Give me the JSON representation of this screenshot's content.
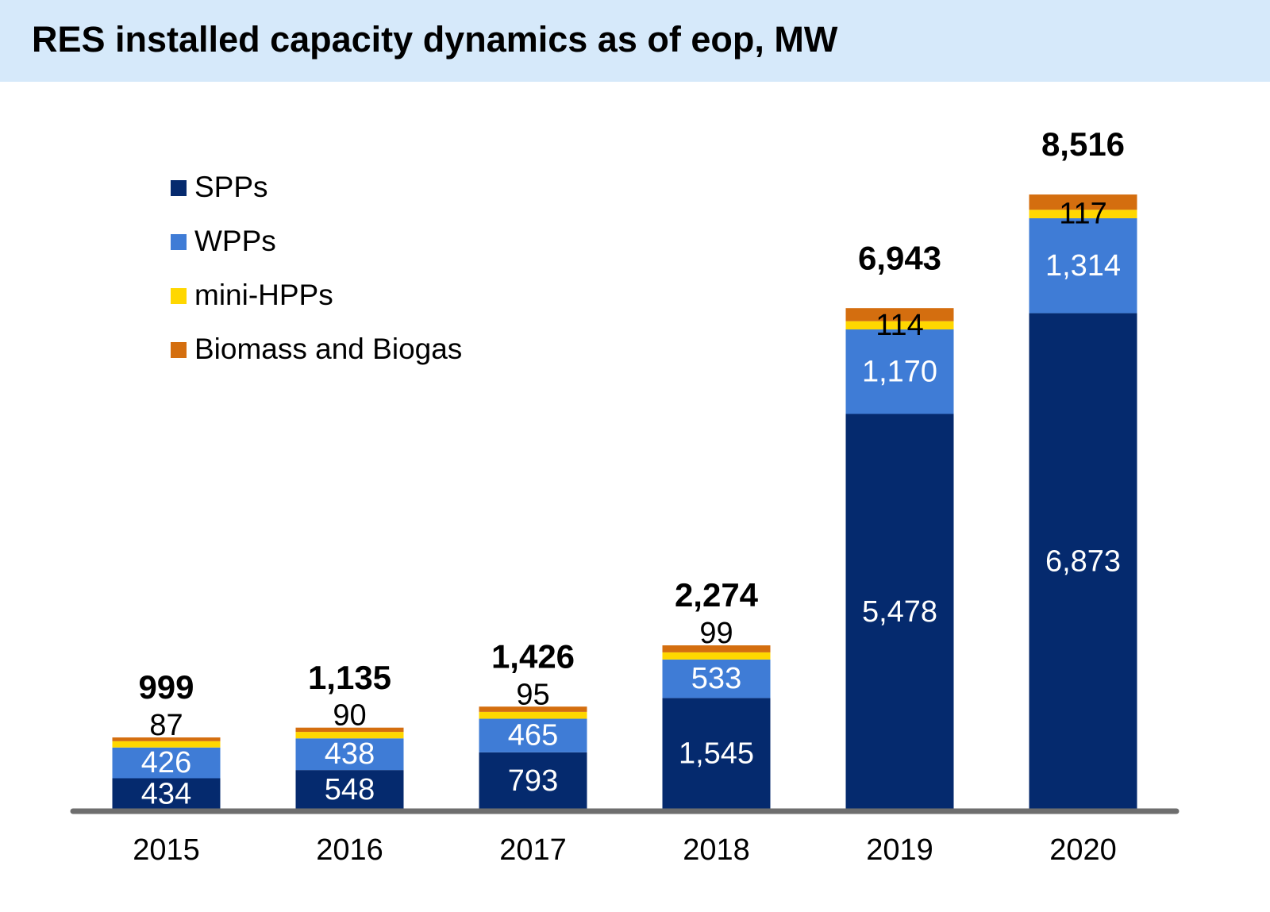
{
  "chart_data": {
    "type": "stacked_bar",
    "title": "RES installed capacity dynamics as of eop, MW",
    "categories": [
      "2015",
      "2016",
      "2017",
      "2018",
      "2019",
      "2020"
    ],
    "series": [
      {
        "name": "SPPs",
        "color": "#052a6e",
        "values": [
          434,
          548,
          793,
          1545,
          5478,
          6873
        ],
        "value_labels": [
          "434",
          "548",
          "793",
          "1,545",
          "5,478",
          "6,873"
        ]
      },
      {
        "name": "WPPs",
        "color": "#3f7cd6",
        "values": [
          426,
          438,
          465,
          533,
          1170,
          1314
        ],
        "value_labels": [
          "426",
          "438",
          "465",
          "533",
          "1,170",
          "1,314"
        ]
      },
      {
        "name": "mini-HPPs",
        "color": "#ffd700",
        "values": [
          87,
          90,
          95,
          99,
          114,
          117
        ]
      },
      {
        "name": "Biomass and Biogas",
        "color": "#d46e0f",
        "values": [
          52,
          59,
          73,
          97,
          181,
          212
        ]
      }
    ],
    "totals": [
      999,
      1135,
      1426,
      2274,
      6943,
      8516
    ],
    "total_labels": [
      "999",
      "1,135",
      "1,426",
      "2,274",
      "6,943",
      "8,516"
    ],
    "ylim": [
      0,
      9000
    ],
    "legend": "top-left"
  }
}
